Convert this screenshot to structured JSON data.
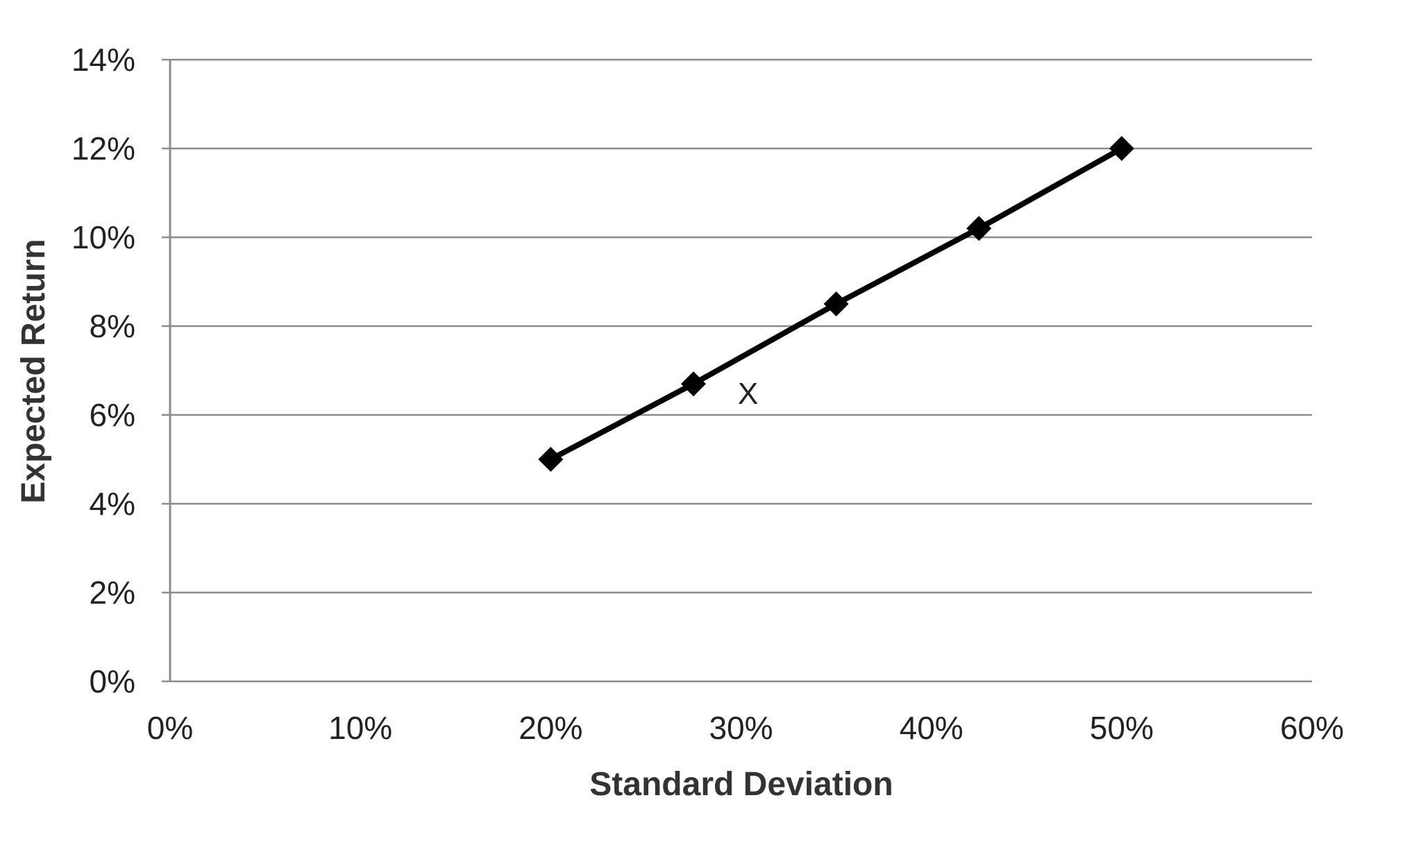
{
  "chart_data": {
    "type": "line",
    "title": "",
    "xlabel": "Standard Deviation",
    "ylabel": "Expected Return",
    "xlim": [
      0,
      0.6
    ],
    "ylim": [
      0,
      0.14
    ],
    "x_ticks": [
      0,
      0.1,
      0.2,
      0.3,
      0.4,
      0.5,
      0.6
    ],
    "x_tick_labels": [
      "0%",
      "10%",
      "20%",
      "30%",
      "40%",
      "50%",
      "60%"
    ],
    "y_ticks": [
      0,
      0.02,
      0.04,
      0.06,
      0.08,
      0.1,
      0.12,
      0.14
    ],
    "y_tick_labels": [
      "0%",
      "2%",
      "4%",
      "6%",
      "8%",
      "10%",
      "12%",
      "14%"
    ],
    "grid": "horizontal",
    "legend": "none",
    "series": [
      {
        "x": [
          0.2,
          0.275,
          0.35,
          0.425,
          0.5
        ],
        "y": [
          0.05,
          0.067,
          0.085,
          0.102,
          0.12
        ]
      }
    ],
    "annotations": [
      {
        "text": "X",
        "x": 0.3,
        "y": 0.065
      }
    ],
    "colors": {
      "line": "#000000",
      "marker": "#000000",
      "grid": "#8c8c8c",
      "axis": "#8c8c8c"
    }
  }
}
